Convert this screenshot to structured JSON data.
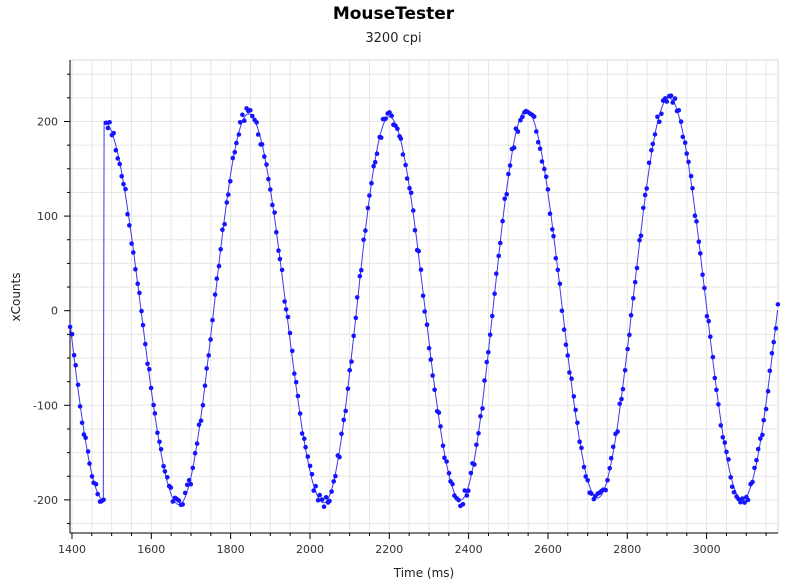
{
  "chart_data": {
    "type": "scatter",
    "title": "MouseTester",
    "subtitle": "3200 cpi",
    "xlabel": "Time (ms)",
    "ylabel": "xCounts",
    "xlim": [
      1395,
      3180
    ],
    "ylim": [
      -235,
      265
    ],
    "x_ticks": [
      1400,
      1600,
      1800,
      2000,
      2200,
      2400,
      2600,
      2800,
      3000
    ],
    "y_ticks": [
      -200,
      -100,
      0,
      100,
      200
    ],
    "grid": true,
    "colors": {
      "points": "#1414ff",
      "line": "#3a3af0",
      "grid": "#e6e6e6",
      "axis": "#000000"
    },
    "fit_line": {
      "period_ms": 355,
      "peaks": [
        {
          "x": 1480,
          "y": 200
        },
        {
          "x": 1845,
          "y": 208
        },
        {
          "x": 2200,
          "y": 205
        },
        {
          "x": 2545,
          "y": 212
        },
        {
          "x": 2905,
          "y": 225
        }
      ],
      "troughs": [
        {
          "x": 1670,
          "y": -205
        },
        {
          "x": 2035,
          "y": -203
        },
        {
          "x": 2380,
          "y": -200
        },
        {
          "x": 2725,
          "y": -198
        },
        {
          "x": 3090,
          "y": -200
        }
      ],
      "start": {
        "x": 1395,
        "y": -38
      },
      "end": {
        "x": 3180,
        "y": -50
      }
    },
    "series": [
      {
        "name": "xCounts",
        "sample_interval_ms": 5
      }
    ]
  }
}
